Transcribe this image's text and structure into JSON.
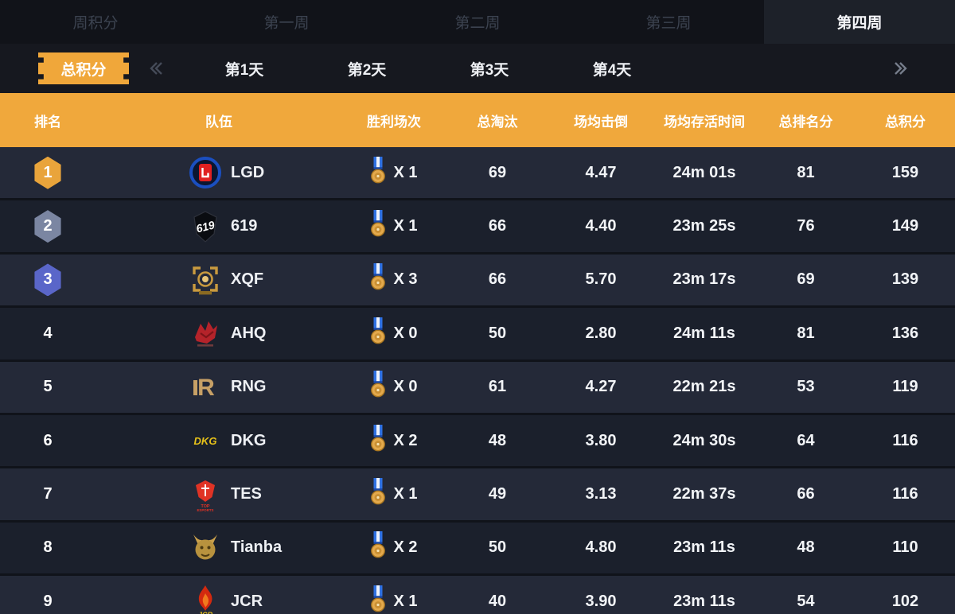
{
  "week_tabs": [
    {
      "label": "周积分",
      "active": false
    },
    {
      "label": "第一周",
      "active": false
    },
    {
      "label": "第二周",
      "active": false
    },
    {
      "label": "第三周",
      "active": false
    },
    {
      "label": "第四周",
      "active": true
    }
  ],
  "day_nav": {
    "total_points_button": "总积分",
    "days": [
      "第1天",
      "第2天",
      "第3天",
      "第4天"
    ],
    "prev_icon": "double-chevron-left",
    "next_icon": "double-chevron-right"
  },
  "table": {
    "headers": [
      "排名",
      "队伍",
      "胜利场次",
      "总淘汰",
      "场均击倒",
      "场均存活时间",
      "总排名分",
      "总积分"
    ],
    "win_icon": "medal",
    "rows": [
      {
        "rank": "1",
        "team": "LGD",
        "wins": "X 1",
        "eliminations": "69",
        "avg_knockdowns": "4.47",
        "avg_survival": "24m 01s",
        "rank_points": "81",
        "total_points": "159"
      },
      {
        "rank": "2",
        "team": "619",
        "wins": "X 1",
        "eliminations": "66",
        "avg_knockdowns": "4.40",
        "avg_survival": "23m 25s",
        "rank_points": "76",
        "total_points": "149"
      },
      {
        "rank": "3",
        "team": "XQF",
        "wins": "X 3",
        "eliminations": "66",
        "avg_knockdowns": "5.70",
        "avg_survival": "23m 17s",
        "rank_points": "69",
        "total_points": "139"
      },
      {
        "rank": "4",
        "team": "AHQ",
        "wins": "X 0",
        "eliminations": "50",
        "avg_knockdowns": "2.80",
        "avg_survival": "24m 11s",
        "rank_points": "81",
        "total_points": "136"
      },
      {
        "rank": "5",
        "team": "RNG",
        "wins": "X 0",
        "eliminations": "61",
        "avg_knockdowns": "4.27",
        "avg_survival": "22m 21s",
        "rank_points": "53",
        "total_points": "119"
      },
      {
        "rank": "6",
        "team": "DKG",
        "wins": "X 2",
        "eliminations": "48",
        "avg_knockdowns": "3.80",
        "avg_survival": "24m 30s",
        "rank_points": "64",
        "total_points": "116"
      },
      {
        "rank": "7",
        "team": "TES",
        "wins": "X 1",
        "eliminations": "49",
        "avg_knockdowns": "3.13",
        "avg_survival": "22m 37s",
        "rank_points": "66",
        "total_points": "116"
      },
      {
        "rank": "8",
        "team": "Tianba",
        "wins": "X 2",
        "eliminations": "50",
        "avg_knockdowns": "4.80",
        "avg_survival": "23m 11s",
        "rank_points": "48",
        "total_points": "110"
      },
      {
        "rank": "9",
        "team": "JCR",
        "wins": "X 1",
        "eliminations": "40",
        "avg_knockdowns": "3.90",
        "avg_survival": "23m 11s",
        "rank_points": "54",
        "total_points": "102"
      }
    ]
  },
  "colors": {
    "header_bg": "#f0a83c",
    "accent_gold": "#f0a73a",
    "rank1_badge": "#e9a43b",
    "rank2_badge": "#7b86a2",
    "rank3_badge": "#5a66c9",
    "row_odd": "#242938",
    "row_even": "#1b202c",
    "tabbar_bg": "#111319",
    "active_tab_bg": "#1d2129"
  }
}
